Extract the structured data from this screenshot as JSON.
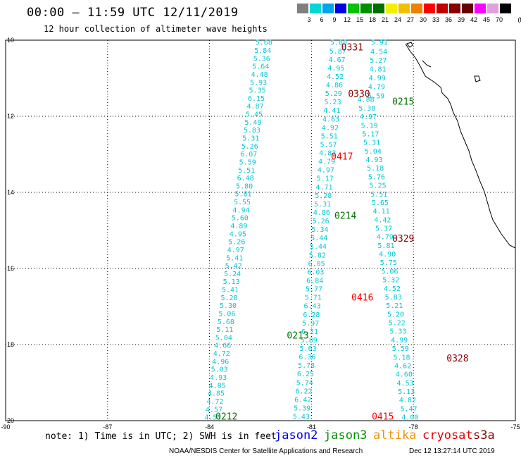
{
  "header": {
    "title": "00:00 – 11:59 UTC 12/11/2019",
    "subtitle": "12 hour collection of altimeter wave heights"
  },
  "color_scale": {
    "unit_label": "(ft)",
    "bins": [
      {
        "label": "3",
        "color": "#7f7f7f"
      },
      {
        "label": "6",
        "color": "#00d8d8"
      },
      {
        "label": "9",
        "color": "#00a4ec"
      },
      {
        "label": "12",
        "color": "#0000e6"
      },
      {
        "label": "15",
        "color": "#00c400"
      },
      {
        "label": "18",
        "color": "#009000"
      },
      {
        "label": "21",
        "color": "#007000"
      },
      {
        "label": "24",
        "color": "#f0f000"
      },
      {
        "label": "27",
        "color": "#f0c000"
      },
      {
        "label": "30",
        "color": "#f08000"
      },
      {
        "label": "33",
        "color": "#ff0000"
      },
      {
        "label": "36",
        "color": "#c00000"
      },
      {
        "label": "39",
        "color": "#880000"
      },
      {
        "label": "42",
        "color": "#660000"
      },
      {
        "label": "45",
        "color": "#ff00ff"
      },
      {
        "label": "70",
        "color": "#e0a0e0"
      },
      {
        "label": "",
        "color": "#000000"
      }
    ]
  },
  "map": {
    "lon_labels": [
      "-90",
      "-87",
      "-84",
      "-81",
      "-78",
      "-75"
    ],
    "lat_labels": [
      "10",
      "12",
      "14",
      "16",
      "18",
      "20"
    ]
  },
  "chart_data": {
    "type": "scatter",
    "title": "00:00 – 11:59 UTC 12/11/2019",
    "subtitle": "12 hour collection of altimeter wave heights",
    "xlim": [
      -90,
      -75
    ],
    "ylim": [
      10,
      20
    ],
    "y_axis_inverted": true,
    "grid": true,
    "series": [
      {
        "name": "jason2",
        "points": []
      },
      {
        "name": "jason3",
        "points": []
      },
      {
        "name": "altika",
        "points": []
      },
      {
        "name": "cryosat",
        "points": []
      },
      {
        "name": "s3a",
        "points": []
      }
    ],
    "time_labels": [
      {
        "text": "0331",
        "x": -79.8,
        "y": 10.18,
        "color": "#880000"
      },
      {
        "text": "0330",
        "x": -79.6,
        "y": 11.4,
        "color": "#880000"
      },
      {
        "text": "0215",
        "x": -78.3,
        "y": 11.6,
        "color": "#007000"
      },
      {
        "text": "0417",
        "x": -80.1,
        "y": 13.05,
        "color": "#ff0000"
      },
      {
        "text": "0214",
        "x": -80.0,
        "y": 14.6,
        "color": "#007000"
      },
      {
        "text": "0329",
        "x": -78.3,
        "y": 15.2,
        "color": "#880000"
      },
      {
        "text": "0416",
        "x": -79.5,
        "y": 16.75,
        "color": "#ff0000"
      },
      {
        "text": "0213",
        "x": -81.4,
        "y": 17.75,
        "color": "#007000"
      },
      {
        "text": "0328",
        "x": -76.7,
        "y": 18.35,
        "color": "#880000"
      },
      {
        "text": "0212",
        "x": -83.5,
        "y": 19.88,
        "color": "#007000"
      },
      {
        "text": "0415",
        "x": -78.9,
        "y": 19.88,
        "color": "#ff0000"
      }
    ],
    "tracks": [
      {
        "start": [
          -82.4,
          10.05
        ],
        "end": [
          -83.9,
          19.9
        ],
        "values": [
          "5.68",
          "5.84",
          "5.36",
          "5.64",
          "4.48",
          "5.93",
          "5.35",
          "6.15",
          "4.87",
          "5.45",
          "5.49",
          "5.83",
          "5.31",
          "5.26",
          "6.07",
          "5.59",
          "5.51",
          "6.48",
          "5.80",
          "5.81",
          "5.55",
          "4.94",
          "5.60",
          "4.89",
          "4.95",
          "5.26",
          "4.97",
          "5.41",
          "5.42",
          "5.24",
          "5.13",
          "5.41",
          "5.28",
          "5.30",
          "5.06",
          "5.68",
          "5.11",
          "5.04",
          "4.66",
          "4.72",
          "4.96",
          "5.03",
          "4.93",
          "4.85",
          "4.85",
          "4.72",
          "4.57",
          "4.51"
        ]
      },
      {
        "start": [
          -80.2,
          10.05
        ],
        "end": [
          -81.3,
          19.88
        ],
        "values": [
          "5.88",
          "5.87",
          "4.67",
          "4.95",
          "4.52",
          "4.86",
          "5.29",
          "5.23",
          "4.41",
          "4.63",
          "4.92",
          "5.51",
          "5.57",
          "4.82",
          "4.79",
          "4.97",
          "5.17",
          "4.71",
          "5.28",
          "5.31",
          "4.86",
          "5.26",
          "5.34",
          "5.44",
          "5.44",
          "5.82",
          "6.05",
          "6.03",
          "6.84",
          "5.77",
          "5.71",
          "6.43",
          "6.28",
          "5.97",
          "6.21",
          "5.89",
          "5.63",
          "6.36",
          "5.78",
          "6.25",
          "5.74",
          "6.22",
          "6.42",
          "5.39",
          "5.43"
        ]
      },
      {
        "start": [
          -79.0,
          10.05
        ],
        "end": [
          -79.1,
          11.45
        ],
        "values": [
          "5.91",
          "4.54",
          "5.27",
          "4.81",
          "4.99",
          "4.79",
          "5.59"
        ]
      },
      {
        "start": [
          -79.4,
          11.55
        ],
        "end": [
          -78.1,
          19.9
        ],
        "values": [
          "4.88",
          "5.38",
          "4.97",
          "5.19",
          "5.17",
          "5.31",
          "5.04",
          "4.93",
          "5.18",
          "5.76",
          "5.25",
          "5.51",
          "5.65",
          "4.11",
          "4.42",
          "5.37",
          "4.79",
          "5.81",
          "4.90",
          "5.75",
          "5.06",
          "5.32",
          "4.52",
          "5.83",
          "5.21",
          "5.20",
          "5.22",
          "5.33",
          "4.99",
          "5.59",
          "5.18",
          "4.62",
          "4.60",
          "4.53",
          "5.13",
          "4.82",
          "5.47",
          "4.00"
        ]
      }
    ]
  },
  "legend": {
    "note": "note: 1) Time is in UTC; 2) SWH is in feet",
    "missions": [
      {
        "name": "jason2",
        "color": "#0000e6"
      },
      {
        "name": "jason3",
        "color": "#009000"
      },
      {
        "name": "altika",
        "color": "#f09000"
      },
      {
        "name": "cryosat",
        "color": "#e00000"
      },
      {
        "name": "s3a",
        "color": "#880000"
      }
    ]
  },
  "footer": {
    "credit": "NOAA/NESDIS Center for Satellite Applications and Research",
    "timestamp": "Dec 12 13:27:14 UTC 2019"
  }
}
